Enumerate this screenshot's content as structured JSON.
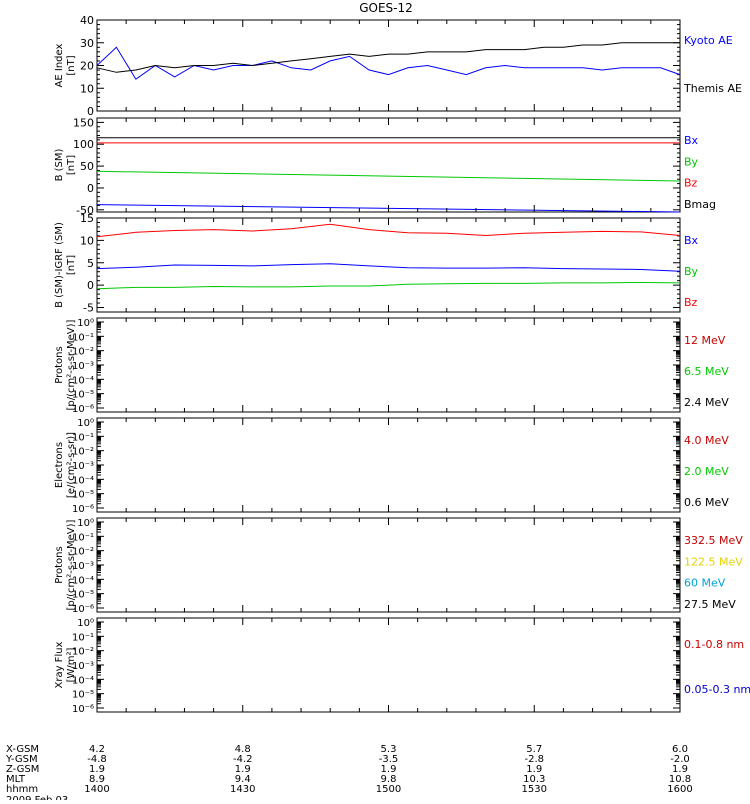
{
  "title": "GOES-12",
  "chart_data": [
    {
      "type": "line",
      "ylabel": [
        "AE Index",
        "[nT]"
      ],
      "ylim": [
        0,
        40
      ],
      "yticks": [
        0,
        10,
        20,
        30,
        40
      ],
      "legend": [
        {
          "name": "Kyoto AE",
          "color": "#0000ff"
        },
        {
          "name": "Themis AE",
          "color": "#000000"
        }
      ],
      "x": [
        0,
        4,
        8,
        12,
        16,
        20,
        24,
        28,
        32,
        36,
        40,
        44,
        48,
        52,
        56,
        60,
        64,
        68,
        72,
        76,
        80,
        84,
        88,
        92,
        96,
        100,
        104,
        108,
        112,
        116,
        120
      ],
      "series": [
        {
          "name": "Kyoto AE",
          "color": "#0000ff",
          "values": [
            20,
            28,
            14,
            20,
            15,
            20,
            18,
            20,
            20,
            22,
            19,
            18,
            22,
            24,
            18,
            16,
            19,
            20,
            18,
            16,
            19,
            20,
            19,
            19,
            19,
            19,
            18,
            19,
            19,
            19,
            16
          ]
        },
        {
          "name": "Themis AE",
          "color": "#000000",
          "values": [
            19,
            17,
            18,
            20,
            19,
            20,
            20,
            21,
            20,
            21,
            22,
            23,
            24,
            25,
            24,
            25,
            25,
            26,
            26,
            26,
            27,
            27,
            27,
            28,
            28,
            29,
            29,
            30,
            30,
            30,
            30
          ]
        }
      ]
    },
    {
      "type": "line",
      "ylabel": [
        "B (SM)",
        "[nT]"
      ],
      "ylim": [
        -55,
        160
      ],
      "yticks": [
        -50,
        0,
        50,
        100,
        150
      ],
      "legend": [
        {
          "name": "Bx",
          "color": "#0000ff"
        },
        {
          "name": "By",
          "color": "#00c800"
        },
        {
          "name": "Bz",
          "color": "#ff0000"
        },
        {
          "name": "Bmag",
          "color": "#000000"
        }
      ],
      "x": [
        0,
        120
      ],
      "series": [
        {
          "name": "Bx",
          "color": "#0000ff",
          "values": [
            -38,
            -55
          ]
        },
        {
          "name": "By",
          "color": "#00c800",
          "values": [
            38,
            16
          ]
        },
        {
          "name": "Bz",
          "color": "#ff0000",
          "values": [
            103,
            103
          ]
        },
        {
          "name": "Bmag",
          "color": "#000000",
          "values": [
            115,
            115
          ]
        }
      ]
    },
    {
      "type": "line",
      "ylabel": [
        "B (SM)-IGRF (SM)",
        "[nT]"
      ],
      "ylim": [
        -6,
        15
      ],
      "yticks": [
        -5,
        0,
        5,
        10,
        15
      ],
      "legend": [
        {
          "name": "Bx",
          "color": "#0000ff"
        },
        {
          "name": "By",
          "color": "#00c800"
        },
        {
          "name": "Bz",
          "color": "#ff0000"
        }
      ],
      "x": [
        0,
        8,
        16,
        24,
        32,
        40,
        48,
        56,
        64,
        72,
        80,
        88,
        96,
        104,
        112,
        120
      ],
      "series": [
        {
          "name": "Bx",
          "color": "#0000ff",
          "values": [
            3.7,
            4.0,
            4.5,
            4.4,
            4.3,
            4.6,
            4.8,
            4.3,
            3.9,
            3.8,
            3.8,
            3.9,
            3.7,
            3.6,
            3.5,
            3.1
          ]
        },
        {
          "name": "By",
          "color": "#00c800",
          "values": [
            -0.8,
            -0.5,
            -0.5,
            -0.3,
            -0.4,
            -0.4,
            -0.2,
            -0.2,
            0.2,
            0.3,
            0.4,
            0.4,
            0.5,
            0.5,
            0.6,
            0.5
          ]
        },
        {
          "name": "Bz",
          "color": "#ff0000",
          "values": [
            10.8,
            11.8,
            12.2,
            12.4,
            12.1,
            12.6,
            13.6,
            12.4,
            11.7,
            11.6,
            11.1,
            11.6,
            11.8,
            12.0,
            11.9,
            11.1
          ]
        }
      ]
    },
    {
      "type": "line",
      "scale": "log",
      "ylabel": [
        "Protons",
        "[p/(cm²-s-sr-MeV)]"
      ],
      "yticks": [
        "10⁰",
        "10⁻¹",
        "10⁻²",
        "10⁻³",
        "10⁻⁴",
        "10⁻⁵",
        "10⁻⁶"
      ],
      "legend": [
        {
          "name": "12 MeV",
          "color": "#c80000"
        },
        {
          "name": "6.5 MeV",
          "color": "#00c800"
        },
        {
          "name": "2.4 MeV",
          "color": "#000000"
        }
      ],
      "series": []
    },
    {
      "type": "line",
      "scale": "log",
      "ylabel": [
        "Electrons",
        "[e/(cm²-s-sr)]"
      ],
      "yticks": [
        "10⁰",
        "10⁻¹",
        "10⁻²",
        "10⁻³",
        "10⁻⁴",
        "10⁻⁵",
        "10⁻⁶"
      ],
      "legend": [
        {
          "name": "4.0 MeV",
          "color": "#c80000"
        },
        {
          "name": "2.0 MeV",
          "color": "#00c800"
        },
        {
          "name": "0.6 MeV",
          "color": "#000000"
        }
      ],
      "series": []
    },
    {
      "type": "line",
      "scale": "log",
      "ylabel": [
        "Protons",
        "[p/(cm²-s-sr-MeV)]"
      ],
      "yticks": [
        "10⁰",
        "10⁻¹",
        "10⁻²",
        "10⁻³",
        "10⁻⁴",
        "10⁻⁵",
        "10⁻⁶"
      ],
      "legend": [
        {
          "name": "332.5 MeV",
          "color": "#c80000"
        },
        {
          "name": "122.5 MeV",
          "color": "#e6d200"
        },
        {
          "name": "60 MeV",
          "color": "#00a0dc"
        },
        {
          "name": "27.5 MeV",
          "color": "#000000"
        }
      ],
      "series": []
    },
    {
      "type": "line",
      "scale": "log",
      "ylabel": [
        "Xray Flux",
        "[W/m²]"
      ],
      "yticks": [
        "10⁰",
        "10⁻¹",
        "10⁻²",
        "10⁻³",
        "10⁻⁴",
        "10⁻⁵",
        "10⁻⁶"
      ],
      "legend": [
        {
          "name": "0.1-0.8 nm",
          "color": "#c80000"
        },
        {
          "name": "0.05-0.3 nm",
          "color": "#0000c8"
        }
      ],
      "series": []
    }
  ],
  "x_axis": {
    "row_labels": [
      "X-GSM",
      "Y-GSM",
      "Z-GSM",
      "MLT",
      "hhmm",
      "2009 Feb 03"
    ],
    "ticks": [
      {
        "x": 0,
        "values": [
          "4.2",
          "-4.8",
          "1.9",
          "8.9",
          "1400"
        ]
      },
      {
        "x": 30,
        "values": [
          "4.8",
          "-4.2",
          "1.9",
          "9.4",
          "1430"
        ]
      },
      {
        "x": 60,
        "values": [
          "5.3",
          "-3.5",
          "1.9",
          "9.8",
          "1500"
        ]
      },
      {
        "x": 90,
        "values": [
          "5.7",
          "-2.8",
          "1.9",
          "10.3",
          "1530"
        ]
      },
      {
        "x": 120,
        "values": [
          "6.0",
          "-2.0",
          "1.9",
          "10.8",
          "1600"
        ]
      }
    ]
  }
}
